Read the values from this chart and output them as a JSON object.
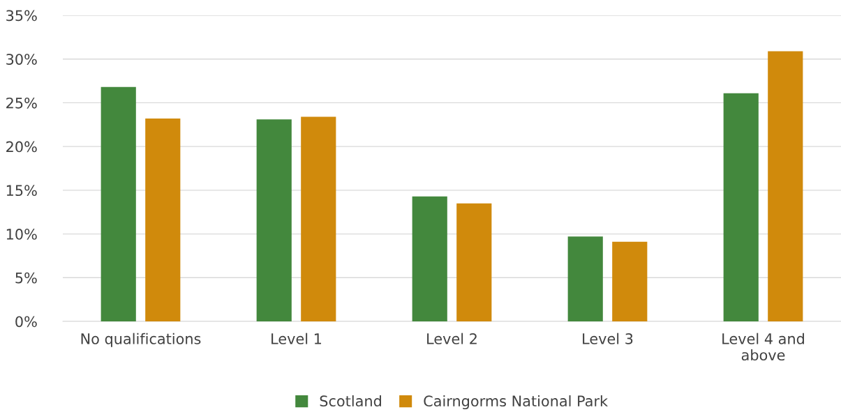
{
  "chart_data": {
    "type": "bar",
    "categories": [
      "No qualifications",
      "Level 1",
      "Level 2",
      "Level 3",
      "Level 4 and\nabove"
    ],
    "series": [
      {
        "name": "Scotland",
        "color": "#43883d",
        "values": [
          26.8,
          23.1,
          14.3,
          9.7,
          26.1
        ]
      },
      {
        "name": "Cairngorms National Park",
        "color": "#d08a0c",
        "values": [
          23.2,
          23.4,
          13.5,
          9.1,
          30.9
        ]
      }
    ],
    "ylim": [
      0,
      35
    ],
    "yticks": [
      {
        "value": 0,
        "label": "0%"
      },
      {
        "value": 5,
        "label": "5%"
      },
      {
        "value": 10,
        "label": "10%"
      },
      {
        "value": 15,
        "label": "15%"
      },
      {
        "value": 20,
        "label": "20%"
      },
      {
        "value": 25,
        "label": "25%"
      },
      {
        "value": 30,
        "label": "30%"
      },
      {
        "value": 35,
        "label": "35%"
      }
    ],
    "grid": "y",
    "legend": "bottom"
  }
}
